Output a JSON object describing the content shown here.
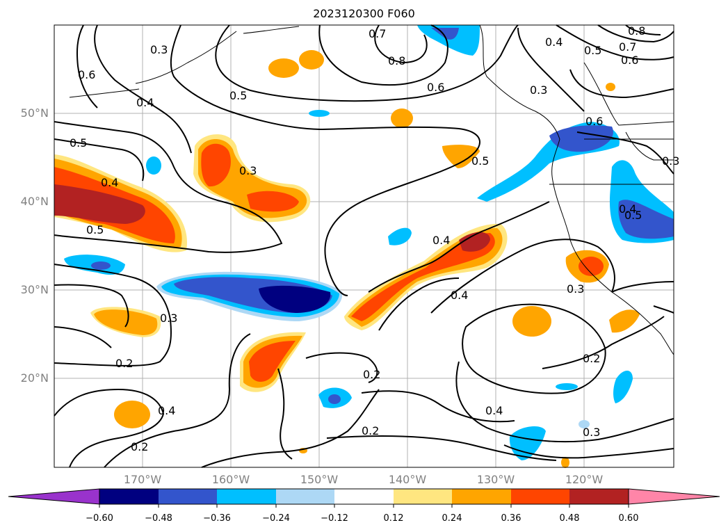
{
  "title": "2023120300 F060",
  "map": {
    "lat_labels": [
      "50°N",
      "40°N",
      "30°N",
      "20°N"
    ],
    "lon_labels": [
      "170°W",
      "160°W",
      "150°W",
      "140°W",
      "130°W",
      "120°W"
    ],
    "contour_labels": [
      "0.7",
      "0.8",
      "0.6",
      "0.3",
      "0.5",
      "0.4",
      "0.6",
      "0.5",
      "0.4",
      "0.3",
      "0.5",
      "0.4",
      "0.5",
      "0.4",
      "0.3",
      "0.2",
      "0.2",
      "0.4",
      "0.2",
      "0.4",
      "0.3",
      "0.3",
      "0.2",
      "0.4",
      "0.2",
      "0.3",
      "0.8",
      "0.7",
      "0.6",
      "0.5",
      "0.4",
      "0.3",
      "0.6",
      "0.5"
    ]
  },
  "colorbar": {
    "ticks": [
      "−0.60",
      "−0.48",
      "−0.36",
      "−0.24",
      "−0.12",
      "0.12",
      "0.24",
      "0.36",
      "0.48",
      "0.60"
    ],
    "colors": [
      "#9933cc",
      "#000080",
      "#3355cc",
      "#00bfff",
      "#add8f5",
      "#ffffff",
      "#ffe680",
      "#ffa500",
      "#ff4500",
      "#b22222",
      "#ff85a8"
    ]
  }
}
